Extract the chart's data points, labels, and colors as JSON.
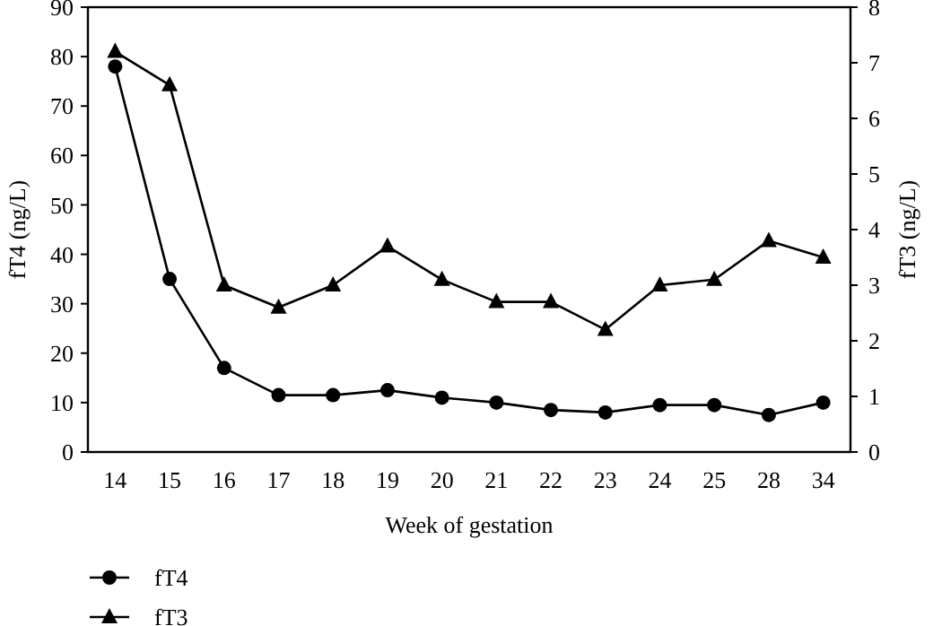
{
  "chart_data": {
    "type": "line",
    "xlabel": "Week of gestation",
    "ylabel": "fT4 (ng/L)",
    "y2label": "fT3 (ng/L)",
    "categories": [
      "14",
      "15",
      "16",
      "17",
      "18",
      "19",
      "20",
      "21",
      "22",
      "23",
      "24",
      "25",
      "28",
      "34"
    ],
    "series": [
      {
        "name": "fT4",
        "color": "#000000",
        "marker": "circle",
        "values": [
          78,
          35,
          17,
          11.5,
          11.5,
          12.5,
          11,
          10,
          8.5,
          8,
          9.5,
          9.5,
          7.5,
          10
        ]
      },
      {
        "name": "fT3",
        "color": "#000000",
        "marker": "triangle",
        "axis": "y2",
        "values": [
          7.2,
          6.6,
          3.0,
          2.6,
          3.0,
          3.7,
          3.1,
          2.7,
          2.7,
          2.2,
          3.0,
          3.1,
          3.8,
          3.5
        ]
      }
    ],
    "ylim": [
      0,
      90
    ],
    "yticks": [
      0,
      10,
      20,
      30,
      40,
      50,
      60,
      70,
      80,
      90
    ],
    "y2lim": [
      0,
      8
    ],
    "y2ticks": [
      0,
      1,
      2,
      3,
      4,
      5,
      6,
      7,
      8
    ],
    "grid": false,
    "legend": "bottom left",
    "line_style": "solid"
  }
}
